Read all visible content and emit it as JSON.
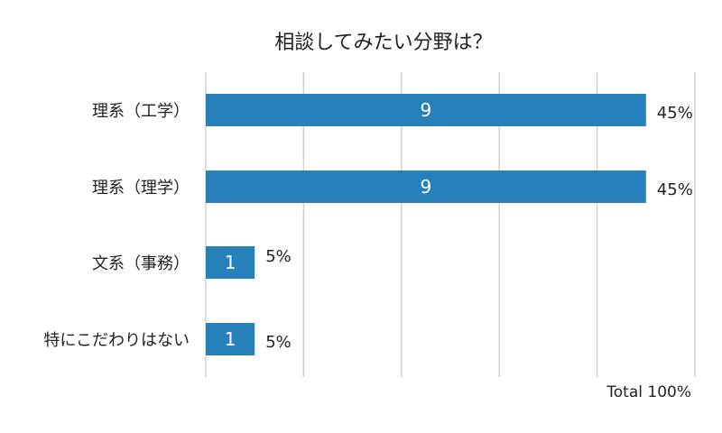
{
  "chart_data": {
    "type": "bar",
    "orientation": "horizontal",
    "title": "相談してみたい分野は？",
    "categories": [
      "理系（工学）",
      "理系（理学）",
      "文系（事務）",
      "特にこだわりはない"
    ],
    "values": [
      9,
      9,
      1,
      1
    ],
    "percent_labels": [
      "45%",
      "45%",
      "5%",
      "5%"
    ],
    "total_label": "Total 100%",
    "xlim": [
      0,
      10
    ],
    "grid": true,
    "bar_color": "#2680ba",
    "grid_color": "#d0d0d0"
  }
}
